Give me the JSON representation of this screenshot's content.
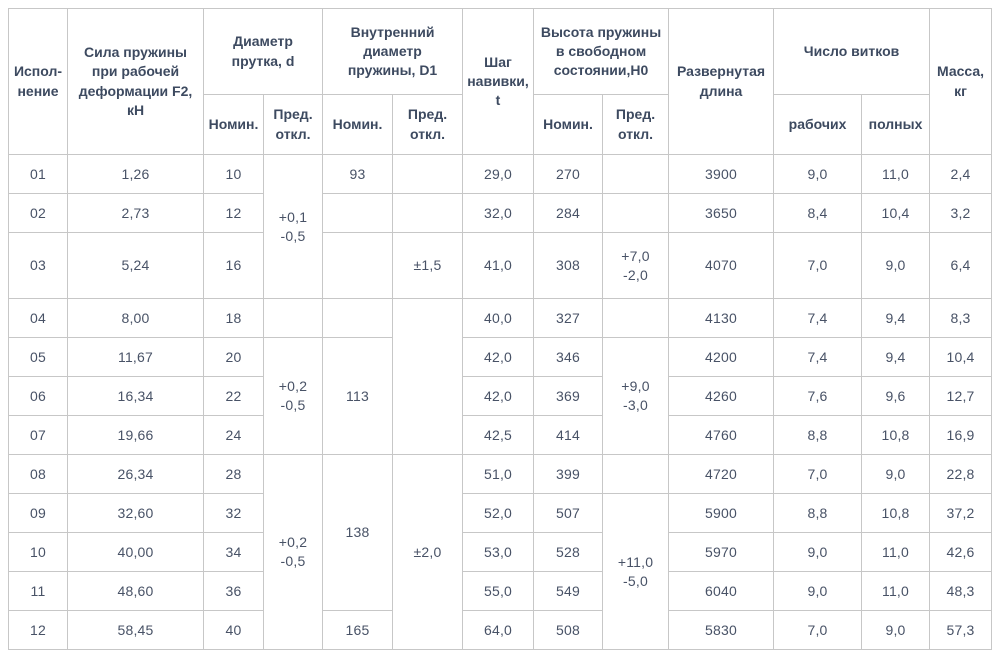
{
  "table": {
    "headers": {
      "ispolnenie": "Испол-\nнение",
      "sila_f2": "Сила пружины\nпри рабочей\nдеформации F2,\nкН",
      "diametr_prutka": "Диаметр\nпрутка, d",
      "vnutrenniy_diametr": "Внутренний\nдиаметр\nпружины, D1",
      "shag_navivki": "Шаг\nнавивки,\nt",
      "vysota_pruzhiny": "Высота пружины\nв свободном\nсостоянии,H0",
      "razvernutaya_dlina": "Развернутая\nдлина",
      "chislo_vitkov": "Число витков",
      "massa": "Масса,\nкг",
      "nomin": "Номин.",
      "pred_otkl": "Пред.\nоткл.",
      "vitki_rabochih": "рабочих",
      "vitki_polnyh": "полных"
    },
    "colors": {
      "header_text": "#3d4a60",
      "body_text": "#485266",
      "grid_line": "#c7c7c7",
      "outer_border": "#aeaeae",
      "background": "#ffffff"
    },
    "rows": [
      [
        "01",
        "1,26",
        "10",
        {
          "t": "+0,1\n-0,5",
          "rs": 3
        },
        "93",
        "",
        "29,0",
        "270",
        "",
        "3900",
        "9,0",
        "11,0",
        "2,4"
      ],
      [
        "02",
        "2,73",
        "12",
        "",
        "",
        "32,0",
        "284",
        "",
        "3650",
        "8,4",
        "10,4",
        "3,2"
      ],
      [
        "03",
        "5,24",
        "16",
        "",
        "±1,5",
        "41,0",
        "308",
        "+7,0\n-2,0",
        "4070",
        "7,0",
        "9,0",
        "6,4"
      ],
      [
        "04",
        "8,00",
        "18",
        "",
        "",
        {
          "t": "",
          "rs": 4
        },
        "40,0",
        "327",
        "",
        "4130",
        "7,4",
        "9,4",
        "8,3"
      ],
      [
        "05",
        "11,67",
        "20",
        {
          "t": "+0,2\n-0,5",
          "rs": 3
        },
        {
          "t": "113",
          "rs": 3
        },
        "42,0",
        "346",
        {
          "t": "+9,0\n-3,0",
          "rs": 3
        },
        "4200",
        "7,4",
        "9,4",
        "10,4"
      ],
      [
        "06",
        "16,34",
        "22",
        "42,0",
        "369",
        "4260",
        "7,6",
        "9,6",
        "12,7"
      ],
      [
        "07",
        "19,66",
        "24",
        "42,5",
        "414",
        "4760",
        "8,8",
        "10,8",
        "16,9"
      ],
      [
        "08",
        "26,34",
        "28",
        {
          "t": "+0,2\n-0,5",
          "rs": 5
        },
        {
          "t": "138",
          "rs": 4
        },
        {
          "t": "±2,0",
          "rs": 5
        },
        "51,0",
        "399",
        "",
        "4720",
        "7,0",
        "9,0",
        "22,8"
      ],
      [
        "09",
        "32,60",
        "32",
        "52,0",
        "507",
        {
          "t": "+11,0\n-5,0",
          "rs": 4
        },
        "5900",
        "8,8",
        "10,8",
        "37,2"
      ],
      [
        "10",
        "40,00",
        "34",
        "53,0",
        "528",
        "5970",
        "9,0",
        "11,0",
        "42,6"
      ],
      [
        "11",
        "48,60",
        "36",
        "55,0",
        "549",
        "6040",
        "9,0",
        "11,0",
        "48,3"
      ],
      [
        "12",
        "58,45",
        "40",
        "165",
        "64,0",
        "508",
        "5830",
        "7,0",
        "9,0",
        "57,3"
      ]
    ]
  }
}
